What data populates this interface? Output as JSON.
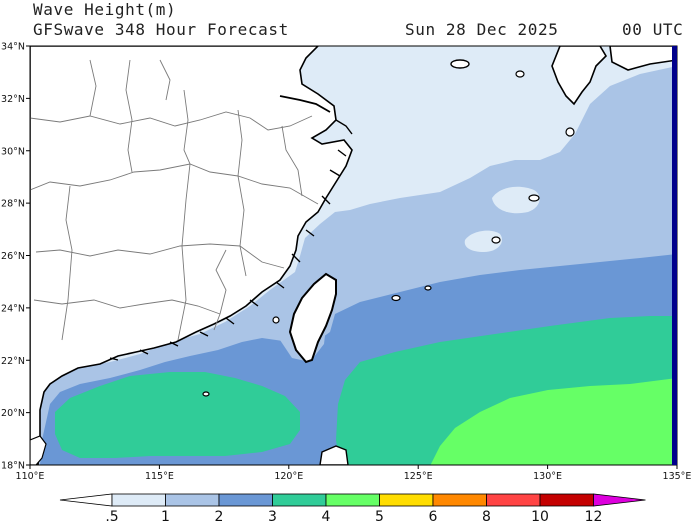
{
  "header": {
    "title": "Wave Height(m)",
    "subtitle": "GFSwave 348 Hour Forecast",
    "date": "Sun 28 Dec 2025",
    "time": "00 UTC"
  },
  "axes": {
    "lat_labels": [
      "34°N",
      "32°N",
      "30°N",
      "28°N",
      "26°N",
      "24°N",
      "22°N",
      "20°N",
      "18°N"
    ],
    "lon_labels": [
      "110°E",
      "115°E",
      "120°E",
      "125°E",
      "130°E",
      "135°E"
    ]
  },
  "extent": {
    "lon_min": 110,
    "lon_max": 135,
    "lat_min": 18,
    "lat_max": 34
  },
  "colorbar": {
    "labels": [
      ".5",
      "1",
      "2",
      "3",
      "4",
      "5",
      "6",
      "8",
      "10",
      "12"
    ],
    "colors": [
      "#ffffff",
      "#deebf7",
      "#aac4e6",
      "#6a97d5",
      "#30cc98",
      "#66ff66",
      "#ffdd00",
      "#ff8800",
      "#ff4444",
      "#c40000",
      "#dd00dd"
    ]
  },
  "map_colors": {
    "land": "#ffffff",
    "level_05_1": "#deebf7",
    "level_1_2": "#aac4e6",
    "level_2_3": "#6a97d5",
    "level_3_4": "#30cc98",
    "level_4_5": "#66ff66",
    "boundary": "#000000",
    "province_lines": "#7a7a7a"
  }
}
